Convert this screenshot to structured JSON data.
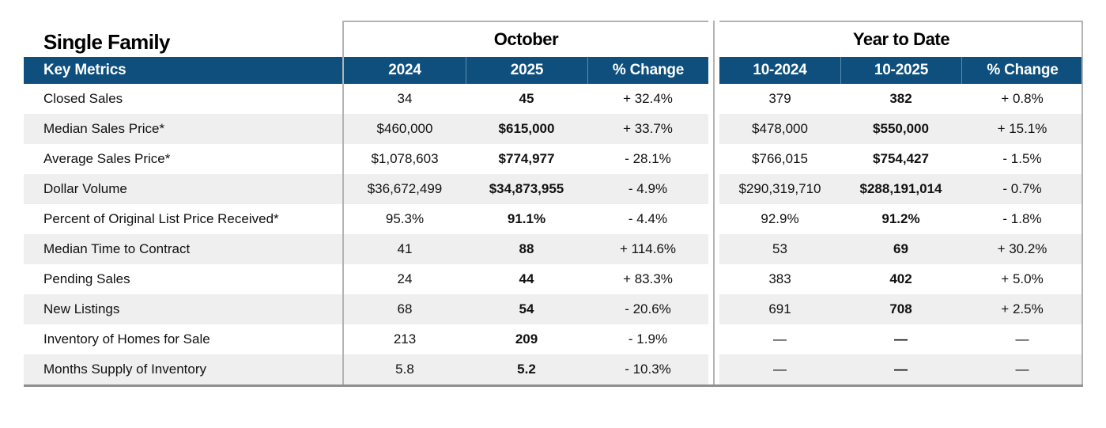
{
  "table": {
    "title": "Single Family",
    "key_metrics_label": "Key Metrics",
    "groups": [
      {
        "label": "October",
        "columns": [
          "2024",
          "2025",
          "% Change"
        ]
      },
      {
        "label": "Year to Date",
        "columns": [
          "10-2024",
          "10-2025",
          "% Change"
        ]
      }
    ],
    "rows": [
      {
        "metric": "Closed Sales",
        "oct": [
          "34",
          "45",
          "+ 32.4%"
        ],
        "ytd": [
          "379",
          "382",
          "+ 0.8%"
        ]
      },
      {
        "metric": "Median Sales Price*",
        "oct": [
          "$460,000",
          "$615,000",
          "+ 33.7%"
        ],
        "ytd": [
          "$478,000",
          "$550,000",
          "+ 15.1%"
        ]
      },
      {
        "metric": "Average Sales Price*",
        "oct": [
          "$1,078,603",
          "$774,977",
          "- 28.1%"
        ],
        "ytd": [
          "$766,015",
          "$754,427",
          "- 1.5%"
        ]
      },
      {
        "metric": "Dollar Volume",
        "oct": [
          "$36,672,499",
          "$34,873,955",
          "- 4.9%"
        ],
        "ytd": [
          "$290,319,710",
          "$288,191,014",
          "- 0.7%"
        ]
      },
      {
        "metric": "Percent of Original List Price Received*",
        "oct": [
          "95.3%",
          "91.1%",
          "- 4.4%"
        ],
        "ytd": [
          "92.9%",
          "91.2%",
          "- 1.8%"
        ]
      },
      {
        "metric": "Median Time to Contract",
        "oct": [
          "41",
          "88",
          "+ 114.6%"
        ],
        "ytd": [
          "53",
          "69",
          "+ 30.2%"
        ]
      },
      {
        "metric": "Pending Sales",
        "oct": [
          "24",
          "44",
          "+ 83.3%"
        ],
        "ytd": [
          "383",
          "402",
          "+ 5.0%"
        ]
      },
      {
        "metric": "New Listings",
        "oct": [
          "68",
          "54",
          "- 20.6%"
        ],
        "ytd": [
          "691",
          "708",
          "+ 2.5%"
        ]
      },
      {
        "metric": "Inventory of Homes for Sale",
        "oct": [
          "213",
          "209",
          "- 1.9%"
        ],
        "ytd": [
          "—",
          "—",
          "—"
        ]
      },
      {
        "metric": "Months Supply of Inventory",
        "oct": [
          "5.8",
          "5.2",
          "- 10.3%"
        ],
        "ytd": [
          "—",
          "—",
          "—"
        ]
      }
    ],
    "colors": {
      "header_blue": "#0e4f7d",
      "alt_row": "#efefef",
      "border": "#b3b3b3",
      "bottom_border": "#8f8f8f"
    }
  }
}
